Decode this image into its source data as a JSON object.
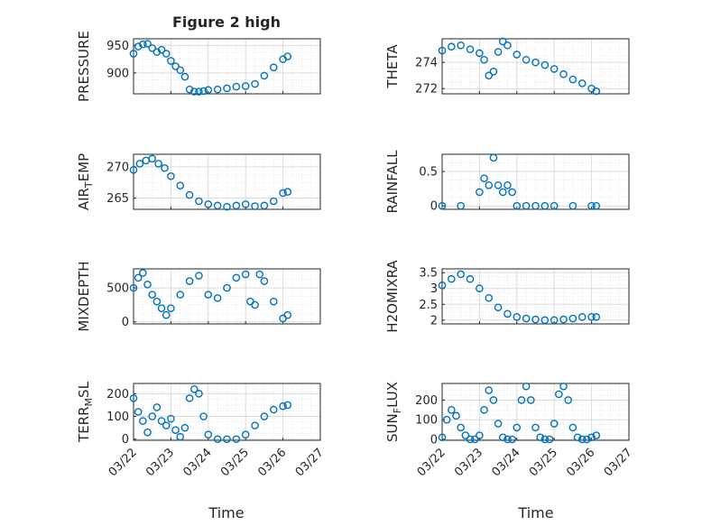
{
  "figure_title": "Figure 2 high",
  "chart_data": [
    {
      "type": "scatter",
      "ylabel": "PRESSURE",
      "title": "Figure 2 high",
      "ylim": [
        862,
        962
      ],
      "yticks": [
        900,
        950
      ],
      "grid": true,
      "x": [
        "2024-03-22T00",
        "2024-03-22T03",
        "2024-03-22T06",
        "2024-03-22T09",
        "2024-03-22T12",
        "2024-03-22T15",
        "2024-03-22T18",
        "2024-03-22T21",
        "2024-03-23T00",
        "2024-03-23T03",
        "2024-03-23T06",
        "2024-03-23T09",
        "2024-03-23T12",
        "2024-03-23T15",
        "2024-03-23T18",
        "2024-03-23T21",
        "2024-03-24T00",
        "2024-03-24T06",
        "2024-03-24T12",
        "2024-03-24T18",
        "2024-03-25T00",
        "2024-03-25T06",
        "2024-03-25T12",
        "2024-03-25T18",
        "2024-03-26T00",
        "2024-03-26T03"
      ],
      "values": [
        935,
        948,
        952,
        953,
        945,
        938,
        942,
        935,
        922,
        912,
        905,
        893,
        870,
        866,
        866,
        867,
        869,
        870,
        872,
        875,
        876,
        880,
        895,
        910,
        925,
        930
      ]
    },
    {
      "type": "scatter",
      "ylabel": "THETA",
      "ylim": [
        271.6,
        275.8
      ],
      "yticks": [
        272,
        274
      ],
      "grid": true,
      "x": [
        "2024-03-22T00",
        "2024-03-22T06",
        "2024-03-22T12",
        "2024-03-22T18",
        "2024-03-23T00",
        "2024-03-23T03",
        "2024-03-23T06",
        "2024-03-23T09",
        "2024-03-23T12",
        "2024-03-23T15",
        "2024-03-23T18",
        "2024-03-24T00",
        "2024-03-24T06",
        "2024-03-24T12",
        "2024-03-24T18",
        "2024-03-25T00",
        "2024-03-25T06",
        "2024-03-25T12",
        "2024-03-25T18",
        "2024-03-26T00",
        "2024-03-26T03"
      ],
      "values": [
        274.9,
        275.2,
        275.3,
        275.0,
        274.7,
        274.2,
        273.0,
        273.3,
        274.8,
        275.6,
        275.3,
        274.6,
        274.2,
        274.0,
        273.8,
        273.5,
        273.1,
        272.7,
        272.4,
        272.0,
        271.8
      ]
    },
    {
      "type": "scatter",
      "ylabel": "AIR_TEMP",
      "ylim": [
        263.2,
        272.0
      ],
      "yticks": [
        265,
        270
      ],
      "grid": true,
      "x": [
        "2024-03-22T00",
        "2024-03-22T04",
        "2024-03-22T08",
        "2024-03-22T12",
        "2024-03-22T16",
        "2024-03-22T20",
        "2024-03-23T00",
        "2024-03-23T06",
        "2024-03-23T12",
        "2024-03-23T18",
        "2024-03-24T00",
        "2024-03-24T06",
        "2024-03-24T12",
        "2024-03-24T18",
        "2024-03-25T00",
        "2024-03-25T06",
        "2024-03-25T12",
        "2024-03-25T18",
        "2024-03-26T00",
        "2024-03-26T03"
      ],
      "values": [
        269.5,
        270.5,
        271.0,
        271.3,
        270.5,
        269.8,
        268.5,
        267.0,
        265.5,
        264.5,
        264.0,
        263.8,
        263.6,
        263.8,
        264.0,
        263.7,
        263.8,
        264.5,
        265.8,
        266.0
      ]
    },
    {
      "type": "scatter",
      "ylabel": "RAINFALL",
      "ylim": [
        -0.05,
        0.75
      ],
      "yticks": [
        0,
        0.5
      ],
      "grid": true,
      "x": [
        "2024-03-22T00",
        "2024-03-22T12",
        "2024-03-23T00",
        "2024-03-23T03",
        "2024-03-23T06",
        "2024-03-23T09",
        "2024-03-23T12",
        "2024-03-23T15",
        "2024-03-23T18",
        "2024-03-23T21",
        "2024-03-24T00",
        "2024-03-24T06",
        "2024-03-24T12",
        "2024-03-24T18",
        "2024-03-25T00",
        "2024-03-25T12",
        "2024-03-26T00",
        "2024-03-26T03"
      ],
      "values": [
        0,
        0,
        0.2,
        0.4,
        0.3,
        0.7,
        0.3,
        0.2,
        0.3,
        0.2,
        0,
        0,
        0,
        0,
        0,
        0,
        0,
        0
      ]
    },
    {
      "type": "scatter",
      "ylabel": "MIXDEPTH",
      "ylim": [
        -30,
        780
      ],
      "yticks": [
        0,
        500
      ],
      "grid": true,
      "x": [
        "2024-03-22T00",
        "2024-03-22T03",
        "2024-03-22T06",
        "2024-03-22T09",
        "2024-03-22T12",
        "2024-03-22T15",
        "2024-03-22T18",
        "2024-03-22T21",
        "2024-03-23T00",
        "2024-03-23T06",
        "2024-03-23T12",
        "2024-03-23T18",
        "2024-03-24T00",
        "2024-03-24T06",
        "2024-03-24T12",
        "2024-03-24T18",
        "2024-03-25T00",
        "2024-03-25T03",
        "2024-03-25T06",
        "2024-03-25T09",
        "2024-03-25T12",
        "2024-03-25T18",
        "2024-03-26T00",
        "2024-03-26T03"
      ],
      "values": [
        500,
        650,
        720,
        550,
        400,
        300,
        200,
        100,
        200,
        400,
        600,
        680,
        400,
        350,
        500,
        650,
        700,
        300,
        250,
        700,
        600,
        300,
        50,
        100
      ]
    },
    {
      "type": "scatter",
      "ylabel": "H2OMIXRA",
      "ylim": [
        1.88,
        3.62
      ],
      "yticks": [
        2,
        2.5,
        3,
        3.5
      ],
      "grid": true,
      "x": [
        "2024-03-22T00",
        "2024-03-22T06",
        "2024-03-22T12",
        "2024-03-22T18",
        "2024-03-23T00",
        "2024-03-23T06",
        "2024-03-23T12",
        "2024-03-23T18",
        "2024-03-24T00",
        "2024-03-24T06",
        "2024-03-24T12",
        "2024-03-24T18",
        "2024-03-25T00",
        "2024-03-25T06",
        "2024-03-25T12",
        "2024-03-25T18",
        "2024-03-26T00",
        "2024-03-26T03"
      ],
      "values": [
        3.1,
        3.3,
        3.45,
        3.3,
        3.0,
        2.7,
        2.4,
        2.2,
        2.1,
        2.05,
        2.02,
        2.0,
        2.0,
        2.02,
        2.05,
        2.1,
        2.1,
        2.1
      ]
    },
    {
      "type": "scatter",
      "ylabel": "TERR_MSL",
      "ylim": [
        -5,
        245
      ],
      "yticks": [
        0,
        100,
        200
      ],
      "grid": true,
      "x": [
        "2024-03-22T00",
        "2024-03-22T03",
        "2024-03-22T06",
        "2024-03-22T09",
        "2024-03-22T12",
        "2024-03-22T15",
        "2024-03-22T18",
        "2024-03-22T21",
        "2024-03-23T00",
        "2024-03-23T03",
        "2024-03-23T06",
        "2024-03-23T09",
        "2024-03-23T12",
        "2024-03-23T15",
        "2024-03-23T18",
        "2024-03-23T21",
        "2024-03-24T00",
        "2024-03-24T06",
        "2024-03-24T12",
        "2024-03-24T18",
        "2024-03-25T00",
        "2024-03-25T06",
        "2024-03-25T12",
        "2024-03-25T18",
        "2024-03-26T00",
        "2024-03-26T03"
      ],
      "values": [
        180,
        120,
        80,
        30,
        100,
        140,
        80,
        60,
        90,
        40,
        10,
        50,
        180,
        220,
        200,
        100,
        20,
        0,
        0,
        0,
        20,
        60,
        100,
        130,
        145,
        150
      ]
    },
    {
      "type": "scatter",
      "ylabel": "SUN_FLUX",
      "ylim": [
        -5,
        285
      ],
      "yticks": [
        0,
        100,
        200
      ],
      "grid": true,
      "x": [
        "2024-03-22T00",
        "2024-03-22T03",
        "2024-03-22T06",
        "2024-03-22T09",
        "2024-03-22T12",
        "2024-03-22T15",
        "2024-03-22T18",
        "2024-03-22T21",
        "2024-03-23T00",
        "2024-03-23T03",
        "2024-03-23T06",
        "2024-03-23T09",
        "2024-03-23T12",
        "2024-03-23T15",
        "2024-03-23T18",
        "2024-03-23T21",
        "2024-03-24T00",
        "2024-03-24T03",
        "2024-03-24T06",
        "2024-03-24T09",
        "2024-03-24T12",
        "2024-03-24T15",
        "2024-03-24T18",
        "2024-03-24T21",
        "2024-03-25T00",
        "2024-03-25T03",
        "2024-03-25T06",
        "2024-03-25T09",
        "2024-03-25T12",
        "2024-03-25T15",
        "2024-03-25T18",
        "2024-03-25T21",
        "2024-03-26T00",
        "2024-03-26T03"
      ],
      "values": [
        10,
        100,
        150,
        120,
        60,
        20,
        0,
        0,
        20,
        150,
        250,
        200,
        80,
        10,
        0,
        0,
        60,
        200,
        270,
        200,
        60,
        10,
        0,
        0,
        80,
        230,
        270,
        200,
        60,
        10,
        0,
        0,
        10,
        20
      ]
    }
  ],
  "x_axis": {
    "tick_labels": [
      "03/22",
      "03/23",
      "03/24",
      "03/25",
      "03/26",
      "03/27"
    ],
    "xlim": [
      "2024-03-22",
      "2024-03-27"
    ],
    "xlabel": "Time"
  },
  "colors": {
    "marker": "#0072BD",
    "axis": "#262626",
    "grid": "#dcdcdc"
  }
}
